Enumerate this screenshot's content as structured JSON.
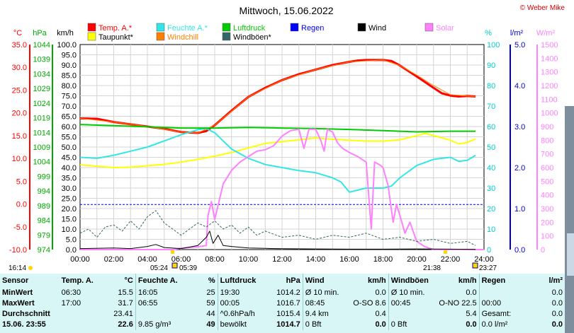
{
  "title": "Mittwoch, 15.06.2022",
  "credit": "© Weber Mike",
  "clock": "16:14",
  "legend": [
    {
      "label": "Temp. A.*",
      "color": "#ff0000"
    },
    {
      "label": "Feuchte A.*",
      "color": "#33e6e6"
    },
    {
      "label": "Luftdruck",
      "color": "#00cc00"
    },
    {
      "label": "Regen",
      "color": "#0000ff"
    },
    {
      "label": "Wind",
      "color": "#000000"
    },
    {
      "label": "Solar",
      "color": "#ff80ff"
    },
    {
      "label": "Taupunkt*",
      "color": "#ffff00"
    },
    {
      "label": "Windchill",
      "color": "#ff8000"
    },
    {
      "label": "Windböen*",
      "color": "#336666"
    }
  ],
  "axis_units": {
    "temp": "°C",
    "pressure": "hPa",
    "wind": "km/h",
    "humidity": "%",
    "rain": "l/m²",
    "solar": "W/m²"
  },
  "axis_colors": {
    "temp": "#ff0000",
    "pressure": "#00aa00",
    "wind": "#000000",
    "humidity": "#00cccc",
    "rain": "#0000cc",
    "solar": "#ff80ff"
  },
  "sun": {
    "sunrise": "05:24",
    "dawn": "05:39",
    "sunset": "21:38",
    "dusk": "23:27"
  },
  "chart_data": {
    "type": "line",
    "x_ticks": [
      "00:00",
      "02:00",
      "04:00",
      "06:00",
      "08:00",
      "10:00",
      "12:00",
      "14:00",
      "16:00",
      "18:00",
      "20:00",
      "22:00",
      "24:00"
    ],
    "x_range_hours": [
      0,
      24
    ],
    "axes": {
      "temp": {
        "unit": "°C",
        "range": [
          -10,
          35
        ],
        "ticks": [
          "35.0",
          "30.0",
          "25.0",
          "20.0",
          "15.0",
          "10.0",
          "5.0",
          "0.0",
          "-5.0",
          "-10.0"
        ]
      },
      "pressure": {
        "unit": "hPa",
        "range": [
          974,
          1044
        ],
        "ticks": [
          "1044",
          "1039",
          "1034",
          "1029",
          "1024",
          "1019",
          "1014",
          "1009",
          "1004",
          "999",
          "994",
          "989",
          "984",
          "979",
          "974"
        ]
      },
      "wind": {
        "unit": "km/h",
        "range": [
          0,
          100
        ],
        "ticks": [
          "100.0",
          "95.0",
          "90.0",
          "85.0",
          "80.0",
          "75.0",
          "70.0",
          "65.0",
          "60.0",
          "55.0",
          "50.0",
          "45.0",
          "40.0",
          "35.0",
          "30.0",
          "25.0",
          "20.0",
          "15.0",
          "10.0",
          "5.0",
          "0.0"
        ]
      },
      "humidity": {
        "unit": "%",
        "range": [
          0,
          100
        ],
        "ticks": [
          "100",
          "90",
          "80",
          "70",
          "60",
          "50",
          "40",
          "30",
          "20",
          "10",
          "0"
        ]
      },
      "rain": {
        "unit": "l/m²",
        "range": [
          0,
          5
        ],
        "ticks": [
          "5.0",
          "4.0",
          "3.0",
          "2.0",
          "1.0",
          "0.0"
        ]
      },
      "solar": {
        "unit": "W/m²",
        "range": [
          0,
          1500
        ],
        "ticks": [
          "1500",
          "1400",
          "1300",
          "1200",
          "1100",
          "1000",
          "900",
          "800",
          "700",
          "600",
          "500",
          "400",
          "300",
          "200",
          "100",
          "0"
        ]
      }
    },
    "series": [
      {
        "name": "Temp. A.*",
        "axis": "temp",
        "color": "#ff0000",
        "width": 3,
        "points": [
          [
            0,
            18.8
          ],
          [
            1,
            18.7
          ],
          [
            2,
            18
          ],
          [
            3,
            17.5
          ],
          [
            4,
            17
          ],
          [
            5,
            16.5
          ],
          [
            6,
            15.8
          ],
          [
            7,
            15.6
          ],
          [
            7.5,
            16
          ],
          [
            8,
            17.3
          ],
          [
            9,
            20.5
          ],
          [
            10,
            23.5
          ],
          [
            11,
            25.5
          ],
          [
            12,
            27.2
          ],
          [
            13,
            28.5
          ],
          [
            14,
            29.5
          ],
          [
            15,
            30.5
          ],
          [
            16,
            31.2
          ],
          [
            16.5,
            31.5
          ],
          [
            17,
            31.6
          ],
          [
            18,
            31.6
          ],
          [
            18.5,
            31.4
          ],
          [
            19,
            30.4
          ],
          [
            20,
            28
          ],
          [
            21,
            25.5
          ],
          [
            21.5,
            24.3
          ],
          [
            22,
            23.8
          ],
          [
            22.5,
            23.6
          ],
          [
            23,
            23.7
          ],
          [
            23.5,
            23.6
          ]
        ]
      },
      {
        "name": "Taupunkt*",
        "axis": "temp",
        "color": "#ffff00",
        "width": 2,
        "points": [
          [
            0,
            8.6
          ],
          [
            1,
            8.3
          ],
          [
            2,
            8
          ],
          [
            3,
            8.1
          ],
          [
            4,
            8.4
          ],
          [
            5,
            8.7
          ],
          [
            6,
            9.2
          ],
          [
            7,
            9.8
          ],
          [
            8,
            10.5
          ],
          [
            9,
            11.3
          ],
          [
            10,
            12.3
          ],
          [
            11,
            13.3
          ],
          [
            12,
            13.7
          ],
          [
            13,
            14.1
          ],
          [
            14,
            14.5
          ],
          [
            15,
            14.2
          ],
          [
            16,
            14
          ],
          [
            17,
            13.8
          ],
          [
            18,
            13.8
          ],
          [
            19,
            14.1
          ],
          [
            20,
            15
          ],
          [
            20.5,
            15.5
          ],
          [
            21,
            15
          ],
          [
            22,
            14
          ],
          [
            22.5,
            13.2
          ],
          [
            23,
            13.5
          ],
          [
            23.5,
            14.3
          ]
        ]
      },
      {
        "name": "Windchill",
        "axis": "temp",
        "color": "#ff8000",
        "width": 1,
        "points": [
          [
            0,
            18.8
          ],
          [
            2,
            18
          ],
          [
            4,
            17
          ],
          [
            6,
            15.8
          ],
          [
            7,
            15.6
          ],
          [
            8,
            17.3
          ],
          [
            10,
            23.5
          ],
          [
            12,
            27.2
          ],
          [
            14,
            29.5
          ],
          [
            16,
            31.2
          ],
          [
            18,
            31.6
          ],
          [
            19,
            30.4
          ],
          [
            20,
            28.3
          ],
          [
            21,
            26
          ],
          [
            22,
            24
          ],
          [
            23,
            23.7
          ],
          [
            23.5,
            23.6
          ]
        ]
      },
      {
        "name": "Feuchte A.*",
        "axis": "humidity",
        "color": "#33e6e6",
        "width": 2,
        "points": [
          [
            0,
            45
          ],
          [
            1,
            44.5
          ],
          [
            2,
            46
          ],
          [
            3,
            48
          ],
          [
            4,
            50
          ],
          [
            5,
            53
          ],
          [
            6,
            56
          ],
          [
            7,
            58.5
          ],
          [
            7.5,
            59
          ],
          [
            8,
            57
          ],
          [
            8.5,
            53
          ],
          [
            9,
            49
          ],
          [
            10,
            44.5
          ],
          [
            11,
            41.5
          ],
          [
            12,
            40
          ],
          [
            13,
            38.5
          ],
          [
            14,
            37.5
          ],
          [
            15,
            35
          ],
          [
            15.5,
            33
          ],
          [
            16,
            28
          ],
          [
            16.5,
            29
          ],
          [
            17,
            30
          ],
          [
            18,
            30
          ],
          [
            18.5,
            31
          ],
          [
            19,
            35
          ],
          [
            20,
            41
          ],
          [
            21,
            44
          ],
          [
            22,
            45
          ],
          [
            22.5,
            43
          ],
          [
            23,
            43.5
          ],
          [
            23.5,
            46
          ]
        ]
      },
      {
        "name": "Luftdruck",
        "axis": "pressure",
        "color": "#00cc00",
        "width": 2,
        "points": [
          [
            0,
            1016.7
          ],
          [
            2,
            1016.3
          ],
          [
            4,
            1015.9
          ],
          [
            6,
            1015.5
          ],
          [
            8,
            1015.5
          ],
          [
            10,
            1015.7
          ],
          [
            12,
            1015.5
          ],
          [
            14,
            1015.3
          ],
          [
            16,
            1015
          ],
          [
            18,
            1014.6
          ],
          [
            20,
            1014.2
          ],
          [
            22,
            1014.4
          ],
          [
            23.5,
            1014.4
          ]
        ]
      },
      {
        "name": "Regen",
        "axis": "rain",
        "color": "#0000ff",
        "width": 1,
        "dashed": true,
        "points": [
          [
            0,
            1.1
          ],
          [
            24,
            1.1
          ]
        ]
      },
      {
        "name": "Solar",
        "axis": "solar",
        "color": "#ff80ff",
        "width": 2,
        "points": [
          [
            0,
            0
          ],
          [
            5.5,
            0
          ],
          [
            6,
            10
          ],
          [
            7,
            20
          ],
          [
            7.5,
            30
          ],
          [
            7.6,
            250
          ],
          [
            7.8,
            350
          ],
          [
            8,
            220
          ],
          [
            8.5,
            480
          ],
          [
            9,
            580
          ],
          [
            9.5,
            640
          ],
          [
            10,
            680
          ],
          [
            10.5,
            720
          ],
          [
            11,
            730
          ],
          [
            11.5,
            760
          ],
          [
            12,
            830
          ],
          [
            12.5,
            870
          ],
          [
            13,
            880
          ],
          [
            13.3,
            740
          ],
          [
            13.6,
            880
          ],
          [
            14,
            880
          ],
          [
            14.3,
            800
          ],
          [
            14.5,
            720
          ],
          [
            14.7,
            880
          ],
          [
            15,
            860
          ],
          [
            15.3,
            780
          ],
          [
            15.6,
            740
          ],
          [
            16,
            710
          ],
          [
            16.5,
            680
          ],
          [
            17,
            640
          ],
          [
            17.3,
            150
          ],
          [
            17.5,
            640
          ],
          [
            17.8,
            620
          ],
          [
            18,
            600
          ],
          [
            18.3,
            470
          ],
          [
            18.6,
            200
          ],
          [
            18.8,
            330
          ],
          [
            19,
            250
          ],
          [
            19.3,
            120
          ],
          [
            19.6,
            200
          ],
          [
            20,
            60
          ],
          [
            20.5,
            20
          ],
          [
            21,
            0
          ],
          [
            24,
            0
          ]
        ]
      },
      {
        "name": "Windböen*",
        "axis": "wind",
        "color": "#336666",
        "width": 1,
        "dashed": true,
        "points": [
          [
            0,
            8
          ],
          [
            0.5,
            10
          ],
          [
            1,
            6
          ],
          [
            1.5,
            11
          ],
          [
            2,
            12
          ],
          [
            2.5,
            9
          ],
          [
            3,
            14
          ],
          [
            3.5,
            10
          ],
          [
            4,
            16
          ],
          [
            4.5,
            19
          ],
          [
            5,
            13
          ],
          [
            5.5,
            10
          ],
          [
            6,
            7
          ],
          [
            6.5,
            10
          ],
          [
            7,
            13
          ],
          [
            7.5,
            11
          ],
          [
            8,
            14
          ],
          [
            8.5,
            10
          ],
          [
            9,
            12
          ],
          [
            9.5,
            8
          ],
          [
            10,
            11
          ],
          [
            10.5,
            7
          ],
          [
            11,
            9
          ],
          [
            12,
            6
          ],
          [
            13,
            7
          ],
          [
            14,
            5
          ],
          [
            15,
            7
          ],
          [
            16,
            6
          ],
          [
            17,
            8
          ],
          [
            18,
            5
          ],
          [
            19,
            6
          ],
          [
            20,
            4
          ],
          [
            21,
            5
          ],
          [
            22,
            3
          ],
          [
            23,
            4
          ],
          [
            23.5,
            2
          ]
        ]
      },
      {
        "name": "Wind",
        "axis": "wind",
        "color": "#000000",
        "width": 1,
        "points": [
          [
            0,
            0.5
          ],
          [
            2,
            0.8
          ],
          [
            3,
            0.5
          ],
          [
            4,
            1.5
          ],
          [
            4.5,
            2.5
          ],
          [
            5,
            1
          ],
          [
            6,
            0.5
          ],
          [
            7,
            2
          ],
          [
            7.5,
            6
          ],
          [
            7.7,
            9
          ],
          [
            7.9,
            3
          ],
          [
            8.2,
            7
          ],
          [
            8.5,
            2
          ],
          [
            9,
            1.5
          ],
          [
            10,
            0.8
          ],
          [
            11,
            0.6
          ],
          [
            12,
            0.4
          ],
          [
            14,
            0.3
          ],
          [
            16,
            0.2
          ],
          [
            18,
            0.2
          ],
          [
            20,
            0.3
          ],
          [
            22,
            0.2
          ],
          [
            23.5,
            0.1
          ]
        ]
      }
    ]
  },
  "stats": {
    "headers": {
      "sensor": "Sensor",
      "temp": "Temp. A.",
      "temp_unit": "°C",
      "hum": "Feuchte A.",
      "hum_unit": "%",
      "press": "Luftdruck",
      "press_unit": "hPa",
      "wind": "Wind",
      "wind_unit": "km/h",
      "gust": "Windböen",
      "gust_unit": "km/h",
      "rain": "Regen",
      "rain_unit": "l/m²"
    },
    "rows": [
      {
        "label": "MinWert",
        "temp_time": "06:30",
        "temp_val": "15.5",
        "hum_time": "16:05",
        "hum_val": "25",
        "press_time": "19:30",
        "press_val": "1014.2",
        "wind_label": "Ø 10 min.",
        "wind_val": "0.0",
        "gust_label": "Ø 10 min.",
        "gust_val": "0.0",
        "rain_label": "",
        "rain_val": "0.0"
      },
      {
        "label": "MaxWert",
        "temp_time": "17:00",
        "temp_val": "31.7",
        "hum_time": "06:55",
        "hum_val": "59",
        "press_time": "00:05",
        "press_val": "1016.7",
        "wind_label": "08:45",
        "wind_dir": "O-SO 8.6",
        "gust_label": "00:45",
        "gust_dir": "O-NO 22.5",
        "rain_label": "00:00",
        "rain_val": "0.0"
      },
      {
        "label": "Durchschnitt",
        "temp_time": "",
        "temp_val": "23.41",
        "hum_time": "",
        "hum_val": "44",
        "press_time": "^0.6hPa/h",
        "press_val": "1015.4",
        "wind_label": "9.4 km",
        "wind_val": "0.4",
        "gust_label": "",
        "gust_val": "5.4",
        "rain_label": "Gesamt:",
        "rain_val": "0.0"
      },
      {
        "label": "15.06. 23:55",
        "temp_time": "",
        "temp_val": "22.6",
        "hum_time": "9.85 g/m³",
        "hum_val": "49",
        "press_time": "bewölkt",
        "press_val": "1014.7",
        "wind_label": "0 Bft",
        "wind_val": "0.0",
        "gust_label": "0 Bft",
        "gust_val": "0.0",
        "rain_label": "0.0 l/m²",
        "rain_val": "0.0"
      }
    ]
  }
}
